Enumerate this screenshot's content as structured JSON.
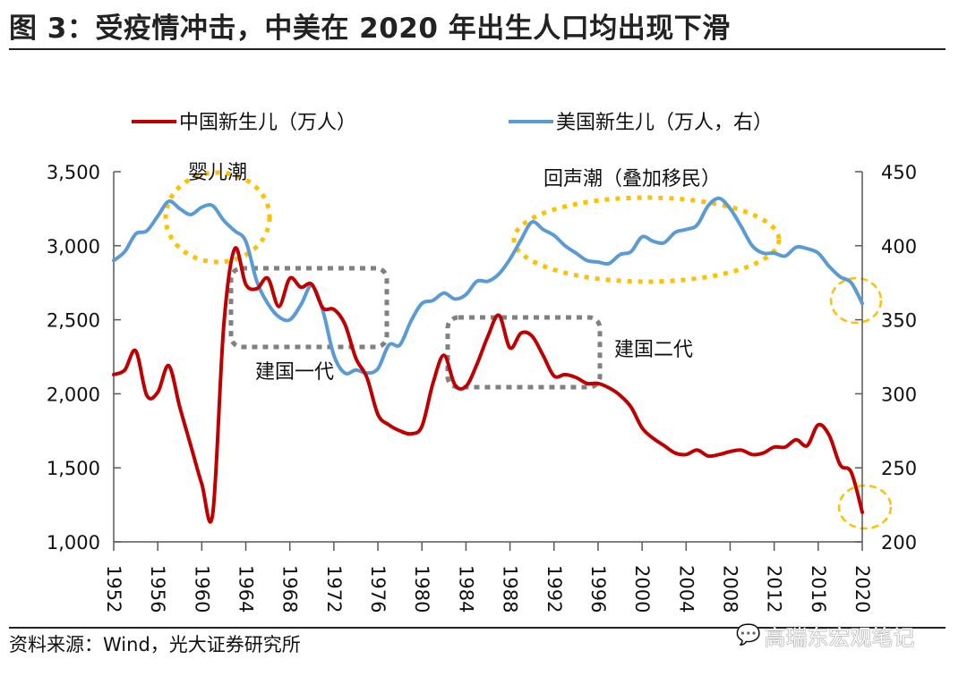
{
  "title": "图 3：受疫情冲击，中美在 2020 年出生人口均出现下滑",
  "source": "资料来源：Wind，光大证券研究所",
  "watermark": "高瑞东宏观笔记",
  "watermark_icon": "wechat-icon",
  "colors": {
    "china": "#c00000",
    "us": "#5b9bd5",
    "highlight_gold": "#ffc000",
    "highlight_gray": "#808080",
    "axis": "#595959"
  },
  "chart_data": {
    "type": "line",
    "title": "图 3：受疫情冲击，中美在 2020 年出生人口均出现下滑",
    "xlabel": "",
    "ylabel_left": "",
    "ylabel_right": "",
    "x": [
      1952,
      1953,
      1954,
      1955,
      1956,
      1957,
      1958,
      1959,
      1960,
      1961,
      1962,
      1963,
      1964,
      1965,
      1966,
      1967,
      1968,
      1969,
      1970,
      1971,
      1972,
      1973,
      1974,
      1975,
      1976,
      1977,
      1978,
      1979,
      1980,
      1981,
      1982,
      1983,
      1984,
      1985,
      1986,
      1987,
      1988,
      1989,
      1990,
      1991,
      1992,
      1993,
      1994,
      1995,
      1996,
      1997,
      1998,
      1999,
      2000,
      2001,
      2002,
      2003,
      2004,
      2005,
      2006,
      2007,
      2008,
      2009,
      2010,
      2011,
      2012,
      2013,
      2014,
      2015,
      2016,
      2017,
      2018,
      2019,
      2020
    ],
    "x_ticks": [
      "1952",
      "1956",
      "1960",
      "1964",
      "1968",
      "1972",
      "1976",
      "1980",
      "1984",
      "1988",
      "1992",
      "1996",
      "2000",
      "2004",
      "2008",
      "2012",
      "2016",
      "2020"
    ],
    "ylim_left": [
      1000,
      3500
    ],
    "yticks_left": [
      "1,000",
      "1,500",
      "2,000",
      "2,500",
      "3,000",
      "3,500"
    ],
    "yticks_left_values": [
      1000,
      1500,
      2000,
      2500,
      3000,
      3500
    ],
    "ylim_right": [
      200,
      450
    ],
    "yticks_right": [
      "200",
      "250",
      "300",
      "350",
      "400",
      "450"
    ],
    "yticks_right_values": [
      200,
      250,
      300,
      350,
      400,
      450
    ],
    "grid": false,
    "legend_position": "top",
    "series": [
      {
        "name": "中国新生儿（万人）",
        "axis": "left",
        "color": "#c00000",
        "values": [
          2130,
          2160,
          2290,
          1990,
          2010,
          2190,
          1910,
          1650,
          1390,
          1190,
          2460,
          2980,
          2740,
          2710,
          2780,
          2590,
          2780,
          2720,
          2740,
          2580,
          2570,
          2470,
          2240,
          2110,
          1860,
          1790,
          1750,
          1730,
          1780,
          2070,
          2260,
          2060,
          2050,
          2200,
          2390,
          2530,
          2310,
          2410,
          2390,
          2260,
          2120,
          2130,
          2110,
          2070,
          2070,
          2040,
          1990,
          1910,
          1770,
          1700,
          1650,
          1600,
          1590,
          1620,
          1580,
          1590,
          1610,
          1620,
          1590,
          1600,
          1640,
          1640,
          1690,
          1650,
          1790,
          1720,
          1520,
          1470,
          1200
        ]
      },
      {
        "name": "美国新生儿（万人，右）",
        "axis": "right",
        "color": "#5b9bd5",
        "values": [
          390,
          396,
          408,
          410,
          420,
          430,
          425,
          421,
          426,
          427,
          417,
          410,
          403,
          376,
          361,
          352,
          350,
          360,
          373,
          356,
          326,
          314,
          316,
          314,
          317,
          333,
          333,
          349,
          361,
          363,
          368,
          364,
          367,
          376,
          376,
          381,
          391,
          404,
          416,
          411,
          407,
          400,
          395,
          390,
          389,
          388,
          394,
          396,
          406,
          403,
          402,
          409,
          411,
          414,
          427,
          432,
          425,
          413,
          400,
          395,
          395,
          393,
          399,
          398,
          395,
          386,
          379,
          375,
          361
        ]
      }
    ],
    "annotations": [
      {
        "text": "婴儿潮",
        "style": "gold-dotted-circle",
        "x_range": [
          1957,
          1962
        ]
      },
      {
        "text": "建国一代",
        "style": "gray-dotted-box",
        "x_range": [
          1962,
          1976
        ]
      },
      {
        "text": "建国二代",
        "style": "gray-dotted-box",
        "x_range": [
          1983,
          1996
        ]
      },
      {
        "text": "回声潮（叠加移民）",
        "style": "gold-dotted-ellipse",
        "x_range": [
          1988,
          2011
        ]
      },
      {
        "text": "",
        "style": "gold-dashed-circle",
        "x_range": [
          2019,
          2021
        ],
        "target": "US 2020"
      },
      {
        "text": "",
        "style": "gold-dashed-circle",
        "x_range": [
          2019,
          2021
        ],
        "target": "China 2020"
      }
    ]
  }
}
